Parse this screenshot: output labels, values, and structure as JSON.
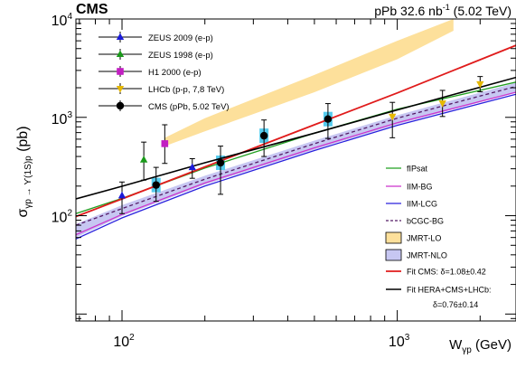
{
  "chart_data": {
    "type": "scatter",
    "experiment": "CMS",
    "lumi_label": "pPb 32.6 nb",
    "lumi_sup": "-1",
    "energy_label": " (5.02 TeV)",
    "xlabel_main": "W",
    "xlabel_sub": "γp",
    "xlabel_unit": " (GeV)",
    "ylabel_main": "σ",
    "ylabel_sub": "γp → ϒ(1S)p",
    "ylabel_unit": " (pb)",
    "x_scale": "log",
    "y_scale": "log",
    "xlim": [
      68,
      2700
    ],
    "ylim": [
      8.5,
      10000
    ],
    "x_ticks": [
      {
        "value": 100,
        "base": "10",
        "exp": "2"
      },
      {
        "value": 1000,
        "base": "10",
        "exp": "3"
      }
    ],
    "y_ticks": [
      {
        "value": 100,
        "base": "10",
        "exp": "2"
      },
      {
        "value": 1000,
        "base": "10",
        "exp": "3"
      },
      {
        "value": 10000,
        "base": "10",
        "exp": "4"
      }
    ],
    "data_series": [
      {
        "name": "ZEUS 2009 (e-p)",
        "color": "#1b1bd9",
        "marker": "triangle",
        "points": [
          [
            100,
            160,
            105,
            220
          ],
          [
            180,
            310,
            240,
            380
          ]
        ]
      },
      {
        "name": "ZEUS 1998 (e-p)",
        "color": "#1a9a1a",
        "marker": "triangle",
        "points": [
          [
            120,
            370,
            230,
            560
          ]
        ]
      },
      {
        "name": "H1 2000 (e-p)",
        "color": "#c21ec2",
        "marker": "square",
        "points": [
          [
            143,
            540,
            340,
            840
          ]
        ]
      },
      {
        "name": "LHCb (p-p, 7,8 TeV)",
        "color": "#e6b800",
        "marker": "triangle-down",
        "points": [
          [
            960,
            1020,
            620,
            1420
          ],
          [
            1460,
            1390,
            1020,
            1880
          ],
          [
            2000,
            2180,
            1820,
            2600
          ]
        ]
      },
      {
        "name": "CMS (pPb, 5.02 TeV)",
        "color": "#000000",
        "marker": "circle",
        "points": [
          [
            133,
            205,
            140,
            310
          ],
          [
            228,
            345,
            165,
            510
          ],
          [
            328,
            650,
            400,
            940
          ],
          [
            560,
            960,
            610,
            1380
          ]
        ]
      }
    ],
    "model_curves": [
      {
        "name": "fIPsat",
        "color": "#22a022",
        "style": "solid",
        "width": 1.3,
        "points": [
          [
            68,
            105
          ],
          [
            100,
            150
          ],
          [
            200,
            305
          ],
          [
            500,
            690
          ],
          [
            1000,
            1210
          ],
          [
            2700,
            2280
          ]
        ]
      },
      {
        "name": "IIM-BG",
        "color": "#cc33cc",
        "style": "solid",
        "width": 1.3,
        "points": [
          [
            68,
            64
          ],
          [
            100,
            103
          ],
          [
            200,
            215
          ],
          [
            500,
            490
          ],
          [
            1000,
            880
          ],
          [
            2700,
            1800
          ]
        ]
      },
      {
        "name": "IIM-LCG",
        "color": "#2a22dd",
        "style": "solid",
        "width": 1.3,
        "points": [
          [
            68,
            58
          ],
          [
            100,
            95
          ],
          [
            200,
            200
          ],
          [
            500,
            460
          ],
          [
            1000,
            830
          ],
          [
            2700,
            1720
          ]
        ]
      },
      {
        "name": "bCGC-BG",
        "color": "#551a66",
        "style": "dashed",
        "width": 1.3,
        "points": [
          [
            68,
            80
          ],
          [
            100,
            118
          ],
          [
            200,
            235
          ],
          [
            500,
            540
          ],
          [
            1000,
            980
          ],
          [
            2700,
            2060
          ]
        ]
      },
      {
        "name": "Fit CMS: δ=1.08±0.42",
        "color": "#e01b1b",
        "style": "solid",
        "width": 1.8,
        "points": [
          [
            68,
            98
          ],
          [
            100,
            148
          ],
          [
            200,
            313
          ],
          [
            500,
            840
          ],
          [
            1000,
            1770
          ],
          [
            2700,
            5400
          ]
        ]
      },
      {
        "name": "Fit HERA+CMS+LHCb:",
        "name_line2": "δ=0.76±0.14",
        "color": "#000000",
        "style": "solid",
        "width": 1.6,
        "points": [
          [
            68,
            148
          ],
          [
            100,
            199
          ],
          [
            200,
            345
          ],
          [
            500,
            690
          ],
          [
            1000,
            1190
          ],
          [
            2700,
            2550
          ]
        ]
      }
    ],
    "bands": [
      {
        "name": "JMRT-LO",
        "color": "#fde09b",
        "lower": [
          [
            143,
            510
          ],
          [
            200,
            720
          ],
          [
            500,
            1800
          ],
          [
            1000,
            3900
          ],
          [
            1600,
            7600
          ]
        ],
        "upper": [
          [
            143,
            620
          ],
          [
            200,
            980
          ],
          [
            500,
            2700
          ],
          [
            1000,
            6000
          ],
          [
            1600,
            10000
          ]
        ]
      },
      {
        "name": "JMRT-NLO",
        "color": "#c7c7f2",
        "lower": [
          [
            68,
            60
          ],
          [
            100,
            99
          ],
          [
            200,
            207
          ],
          [
            500,
            470
          ],
          [
            1000,
            850
          ],
          [
            2700,
            1780
          ]
        ],
        "upper": [
          [
            68,
            82
          ],
          [
            100,
            128
          ],
          [
            200,
            255
          ],
          [
            500,
            580
          ],
          [
            1000,
            1050
          ],
          [
            2700,
            2250
          ]
        ]
      }
    ],
    "legend_placement": "top-left",
    "legend2_placement": "bottom-right",
    "grid": false
  }
}
